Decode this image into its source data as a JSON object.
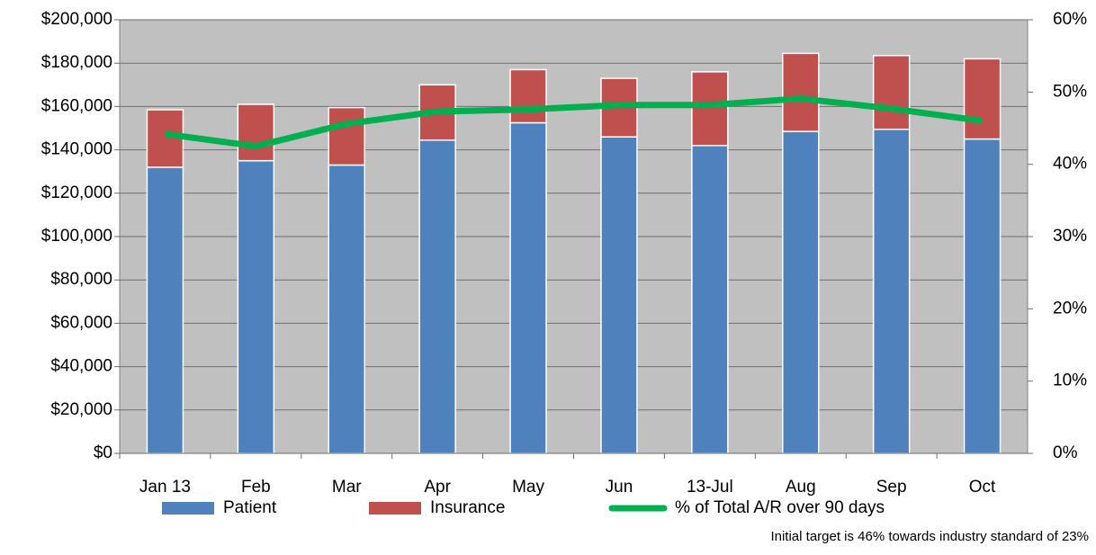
{
  "chart_data": {
    "type": "bar",
    "stacked": true,
    "categories": [
      "Jan 13",
      "Feb",
      "Mar",
      "Apr",
      "May",
      "Jun",
      "13-Jul",
      "Aug",
      "Sep",
      "Oct"
    ],
    "series": [
      {
        "name": "Patient",
        "color": "#4f81bd",
        "values": [
          132000,
          135000,
          133000,
          144500,
          152500,
          146000,
          142000,
          148500,
          149500,
          145000
        ]
      },
      {
        "name": "Insurance",
        "color": "#c0504d",
        "values": [
          26500,
          26000,
          26500,
          25500,
          24500,
          27000,
          34000,
          36000,
          34000,
          37000
        ]
      },
      {
        "name": "% of Total A/R over 90 days",
        "color": "#00b050",
        "type": "line",
        "axis": "y2",
        "values": [
          44.2,
          42.5,
          45.6,
          47.3,
          47.6,
          48.2,
          48.2,
          49.1,
          47.7,
          46.0
        ]
      }
    ],
    "ylim": [
      0,
      200000
    ],
    "yticks": [
      {
        "value": 0,
        "label": "$0"
      },
      {
        "value": 20000,
        "label": "$20,000"
      },
      {
        "value": 40000,
        "label": "$40,000"
      },
      {
        "value": 60000,
        "label": "$60,000"
      },
      {
        "value": 80000,
        "label": "$80,000"
      },
      {
        "value": 100000,
        "label": "$100,000"
      },
      {
        "value": 120000,
        "label": "$120,000"
      },
      {
        "value": 140000,
        "label": "$140,000"
      },
      {
        "value": 160000,
        "label": "$160,000"
      },
      {
        "value": 180000,
        "label": "$180,000"
      },
      {
        "value": 200000,
        "label": "$200,000"
      }
    ],
    "y2lim": [
      0,
      60
    ],
    "y2ticks": [
      {
        "value": 0,
        "label": "0%"
      },
      {
        "value": 10,
        "label": "10%"
      },
      {
        "value": 20,
        "label": "20%"
      },
      {
        "value": 30,
        "label": "30%"
      },
      {
        "value": 40,
        "label": "40%"
      },
      {
        "value": 50,
        "label": "50%"
      },
      {
        "value": 60,
        "label": "60%"
      }
    ],
    "grid": true,
    "legend": "bottom",
    "annotation": "Initial target is 46% towards industry standard of 23%"
  }
}
